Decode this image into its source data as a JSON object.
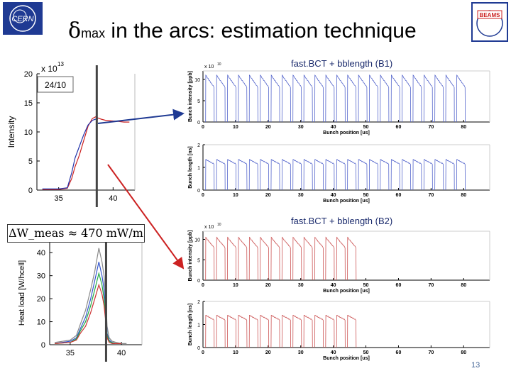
{
  "slide": {
    "title_greek": "δ",
    "title_sub": "max",
    "title_rest": " in the arcs: estimation technique",
    "page_number": "13",
    "cern_logo_text": "CERN",
    "beams_logo_text": "BEAMS",
    "formula": "ΔW_meas ≈ 470 mW/m"
  },
  "captions": {
    "b1": "fast.BCT + bblength (B1)",
    "b2": "fast.BCT + bblength (B2)"
  },
  "chart_data": [
    {
      "type": "line",
      "id": "intensity",
      "ylabel": "Intensity",
      "exponent_label": "x 10",
      "exponent_value": "13",
      "annotation": "24/10",
      "x_ticks": [
        "35",
        "40"
      ],
      "y_ticks": [
        "0",
        "5",
        "10",
        "15",
        "20"
      ],
      "ylim": [
        0,
        20
      ],
      "xlim": [
        33,
        42
      ],
      "marker_x": 38.5,
      "series": [
        {
          "color": "#cc2222",
          "x": [
            33.5,
            35,
            35.8,
            36.2,
            36.5,
            36.9,
            37.3,
            37.7,
            38.1,
            38.4,
            38.6,
            38.9,
            39.3,
            39.8,
            40.5,
            41,
            41.5
          ],
          "y": [
            0.1,
            0.1,
            0.3,
            2,
            4,
            6,
            8.5,
            11,
            12.3,
            12.6,
            12.4,
            12.2,
            12,
            11.9,
            11.8,
            11.7,
            11.7
          ]
        },
        {
          "color": "#2233aa",
          "x": [
            33.5,
            35,
            35.8,
            36.2,
            36.5,
            36.9,
            37.3,
            37.7,
            38.1,
            38.4,
            38.6
          ],
          "y": [
            0.2,
            0.2,
            0.4,
            3,
            5.5,
            7.5,
            9.5,
            11.2,
            12,
            12.2,
            12.2
          ]
        }
      ]
    },
    {
      "type": "line",
      "id": "heat-load",
      "ylabel": "Heat load [W/hcell]",
      "x_ticks": [
        "35",
        "40"
      ],
      "y_ticks": [
        "0",
        "10",
        "20",
        "30",
        "40"
      ],
      "ylim": [
        0,
        45
      ],
      "xlim": [
        33,
        42
      ],
      "marker_x": 38.5,
      "series": [
        {
          "color": "#888888",
          "x": [
            33.5,
            35,
            35.6,
            36,
            36.5,
            37,
            37.4,
            37.8,
            38.1,
            38.3,
            38.5,
            38.6,
            38.8,
            39.1,
            39.5,
            40,
            40.5
          ],
          "y": [
            1,
            2,
            4,
            9,
            15,
            24,
            32,
            42,
            36,
            30,
            18,
            8,
            3,
            1.5,
            1,
            0.5,
            0.5
          ]
        },
        {
          "color": "#3355cc",
          "x": [
            33.5,
            35,
            35.6,
            36,
            36.5,
            37,
            37.4,
            37.8,
            38.1,
            38.3,
            38.5,
            38.6,
            38.8,
            39.1,
            39.5,
            40
          ],
          "y": [
            0.5,
            1.5,
            3,
            7,
            12,
            20,
            28,
            36,
            30,
            24,
            14,
            5,
            2,
            1,
            0.5,
            0.5
          ]
        },
        {
          "color": "#22aa44",
          "x": [
            33.5,
            35,
            35.6,
            36,
            36.5,
            37,
            37.4,
            37.8,
            38.1,
            38.3,
            38.5,
            38.6,
            38.8,
            39.1,
            39.5,
            40
          ],
          "y": [
            0.5,
            1,
            2.5,
            6,
            10,
            17,
            24,
            31,
            26,
            20,
            11,
            4,
            1.5,
            0.8,
            0.5,
            0.5
          ]
        },
        {
          "color": "#cc3333",
          "x": [
            33.5,
            35,
            35.6,
            36,
            36.5,
            37,
            37.4,
            37.8,
            38.1,
            38.3,
            38.5,
            38.6,
            38.8,
            39.1,
            39.5,
            40
          ],
          "y": [
            0.5,
            1,
            2,
            5,
            8,
            14,
            20,
            26,
            22,
            17,
            9,
            3,
            1,
            0.5,
            0.5,
            0.5
          ]
        }
      ]
    },
    {
      "type": "line",
      "id": "b1-bunch-intensity",
      "ylabel": "Bunch intensity [ppb]",
      "xlabel": "Bunch position [us]",
      "exponent_label": "x 10",
      "exponent_value": "10",
      "x_ticks": [
        "0",
        "10",
        "20",
        "30",
        "40",
        "50",
        "60",
        "70",
        "80"
      ],
      "y_ticks": [
        "0",
        "5",
        "10"
      ],
      "xlim": [
        0,
        88
      ],
      "ylim": [
        0,
        12
      ],
      "color": "#5566cc",
      "pattern": {
        "train_start": 0.8,
        "train_spacing": 3.35,
        "train_count": 24,
        "train_length": 2.6,
        "start_value": 11,
        "end_value": 8.2
      }
    },
    {
      "type": "line",
      "id": "b1-bunch-length",
      "ylabel": "Bunch length [ns]",
      "xlabel": "Bunch position [us]",
      "x_ticks": [
        "0",
        "10",
        "20",
        "30",
        "40",
        "50",
        "60",
        "70",
        "80"
      ],
      "y_ticks": [
        "0",
        "1",
        "2"
      ],
      "xlim": [
        0,
        88
      ],
      "ylim": [
        0,
        2
      ],
      "color": "#5566cc",
      "pattern": {
        "train_start": 0.8,
        "train_spacing": 3.35,
        "train_count": 24,
        "train_length": 2.6,
        "start_value": 1.35,
        "end_value": 1.15
      }
    },
    {
      "type": "line",
      "id": "b2-bunch-intensity",
      "ylabel": "Bunch intensity [ppb]",
      "xlabel": "Bunch position [us]",
      "exponent_label": "x 10",
      "exponent_value": "10",
      "x_ticks": [
        "0",
        "10",
        "20",
        "30",
        "40",
        "50",
        "60",
        "70",
        "80"
      ],
      "y_ticks": [
        "0",
        "5",
        "10"
      ],
      "xlim": [
        0,
        88
      ],
      "ylim": [
        0,
        12
      ],
      "color": "#cc5555",
      "pattern": {
        "train_start": 0.8,
        "train_spacing": 3.35,
        "train_count": 14,
        "train_length": 2.6,
        "start_value": 10.5,
        "end_value": 8.0
      }
    },
    {
      "type": "line",
      "id": "b2-bunch-length",
      "ylabel": "Bunch length [ns]",
      "xlabel": "Bunch position [us]",
      "x_ticks": [
        "0",
        "10",
        "20",
        "30",
        "40",
        "50",
        "60",
        "70",
        "80"
      ],
      "y_ticks": [
        "0",
        "1",
        "2"
      ],
      "xlim": [
        0,
        88
      ],
      "ylim": [
        0,
        2
      ],
      "color": "#cc5555",
      "pattern": {
        "train_start": 0.8,
        "train_spacing": 3.35,
        "train_count": 14,
        "train_length": 2.6,
        "start_value": 1.4,
        "end_value": 1.2
      }
    }
  ]
}
